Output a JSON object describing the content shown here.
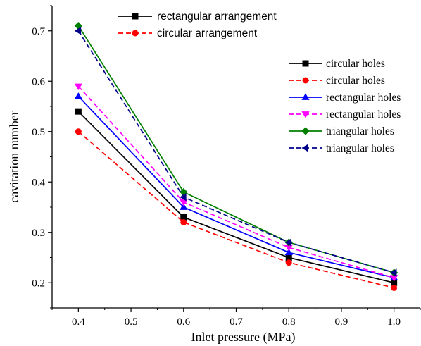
{
  "chart_data": {
    "type": "line",
    "title": "",
    "xlabel": "Inlet pressure (MPa)",
    "ylabel": "cavitation number",
    "xlim": [
      0.35,
      1.05
    ],
    "ylim": [
      0.15,
      0.75
    ],
    "x_ticks": [
      "0.4",
      "0.5",
      "0.6",
      "0.7",
      "0.8",
      "0.9",
      "1.0"
    ],
    "y_ticks": [
      "0.2",
      "0.3",
      "0.4",
      "0.5",
      "0.6",
      "0.7"
    ],
    "x": [
      0.4,
      0.6,
      0.8,
      1.0
    ],
    "grid": false,
    "legend_group": [
      {
        "name": "rectangular arrangement",
        "color": "#000000",
        "dash": "solid",
        "marker": "square"
      },
      {
        "name": "circular arrangement",
        "color": "#ff0000",
        "dash": "dashed",
        "marker": "circle"
      }
    ],
    "series": [
      {
        "name": "circular holes",
        "color": "#000000",
        "dash": "solid",
        "marker": "square",
        "values": [
          0.54,
          0.33,
          0.25,
          0.2
        ]
      },
      {
        "name": "circular holes",
        "color": "#ff0000",
        "dash": "dashed",
        "marker": "circle",
        "values": [
          0.5,
          0.32,
          0.24,
          0.19
        ]
      },
      {
        "name": "rectangular holes",
        "color": "#0000ff",
        "dash": "solid",
        "marker": "triangle-up",
        "values": [
          0.57,
          0.35,
          0.26,
          0.21
        ]
      },
      {
        "name": "rectangular holes",
        "color": "#ff00ff",
        "dash": "dashed",
        "marker": "triangle-down",
        "values": [
          0.59,
          0.36,
          0.27,
          0.21
        ]
      },
      {
        "name": "triangular holes",
        "color": "#008000",
        "dash": "solid",
        "marker": "diamond",
        "values": [
          0.71,
          0.38,
          0.28,
          0.22
        ]
      },
      {
        "name": "triangular holes",
        "color": "#00008b",
        "dash": "dashed",
        "marker": "triangle-left",
        "values": [
          0.7,
          0.37,
          0.28,
          0.22
        ]
      }
    ]
  }
}
